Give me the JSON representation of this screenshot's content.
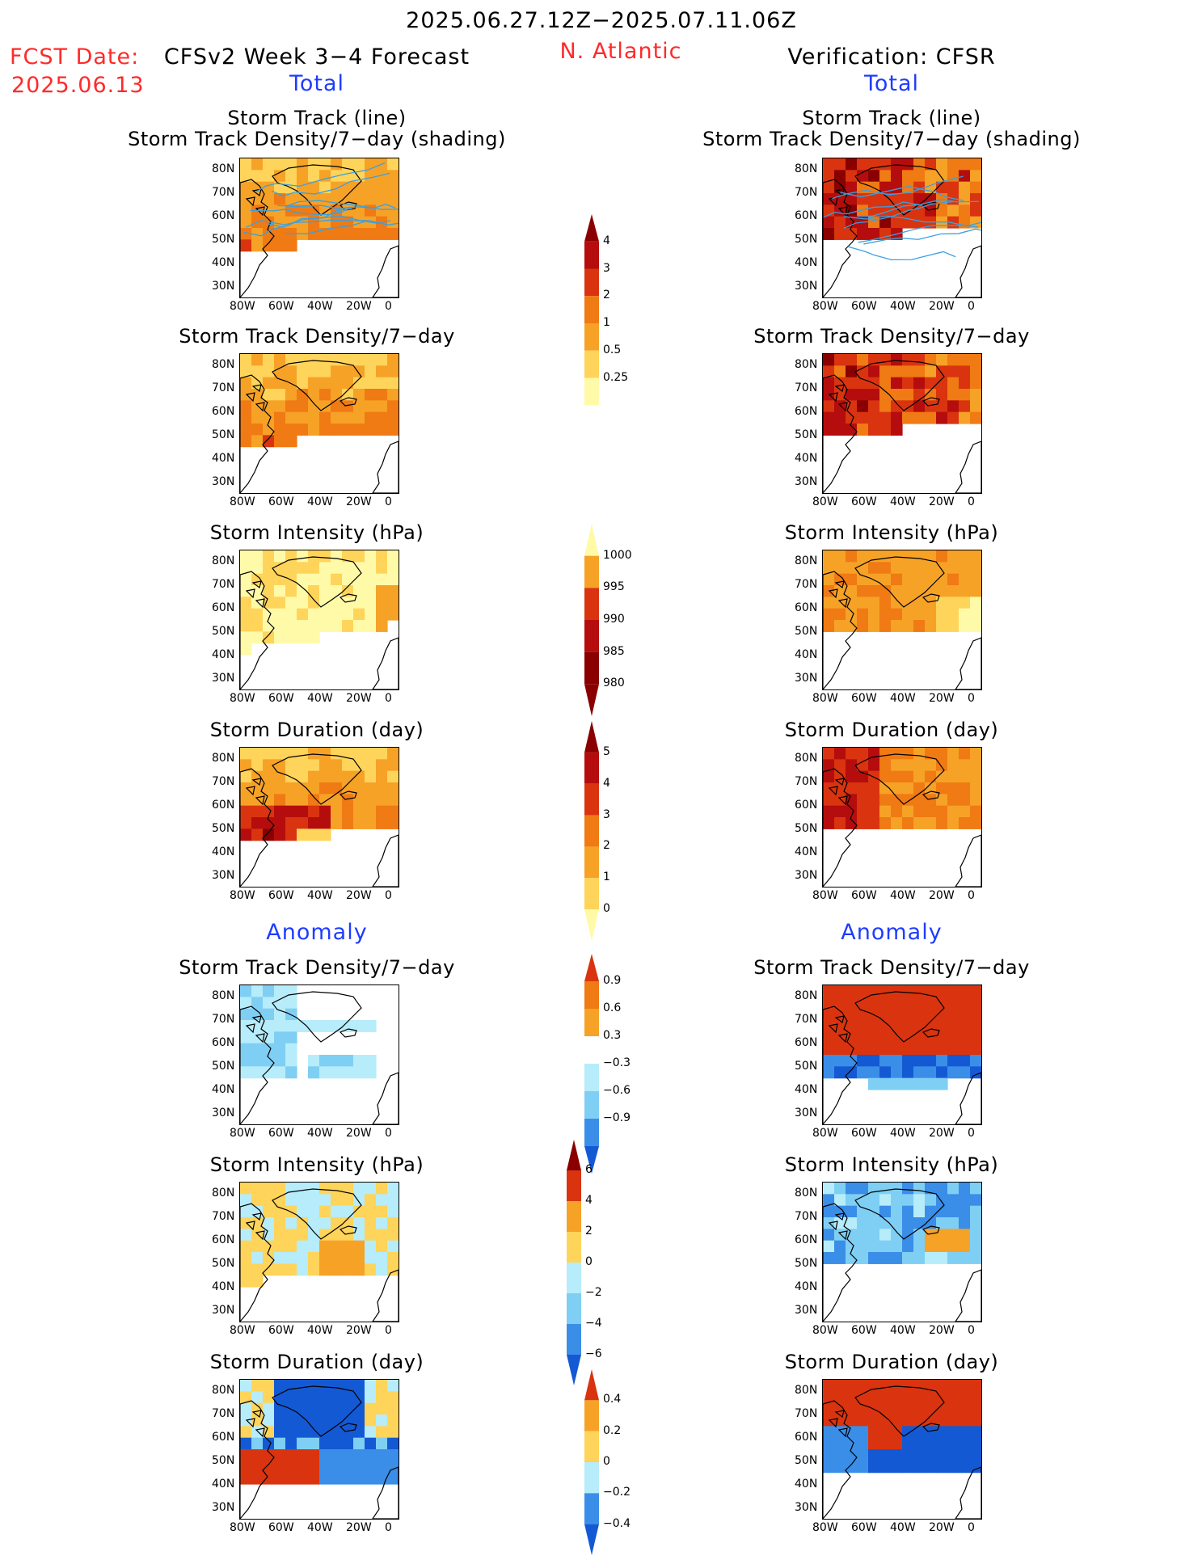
{
  "header": {
    "period": "2025.06.27.12Z−2025.07.11.06Z",
    "fcst_label": "FCST Date:",
    "fcst_date": "2025.06.13",
    "model": "CFSv2 Week 3−4 Forecast",
    "region": "N. Atlantic",
    "verification": "Verification: CFSR",
    "total_left": "Total",
    "total_right": "Total",
    "anomaly_left": "Anomaly",
    "anomaly_right": "Anomaly"
  },
  "panel_titles": {
    "track_line": "Storm Track (line)",
    "track_shading": "Storm Track Density/7−day (shading)",
    "density": "Storm Track Density/7−day",
    "intensity": "Storm Intensity (hPa)",
    "duration": "Storm Duration (day)"
  },
  "axes": {
    "lat": [
      "80N",
      "70N",
      "60N",
      "50N",
      "40N",
      "30N"
    ],
    "lon": [
      "80W",
      "60W",
      "40W",
      "20W",
      "0"
    ]
  },
  "colorbars": {
    "density_total": [
      "4",
      "3",
      "2",
      "1",
      "0.5",
      "0.25"
    ],
    "intensity_total": [
      "1000",
      "995",
      "990",
      "985",
      "980"
    ],
    "duration_total": [
      "5",
      "4",
      "3",
      "2",
      "1",
      "0"
    ],
    "density_anom": [
      "0.9",
      "0.6",
      "0.3",
      "−0.3",
      "−0.6",
      "−0.9"
    ],
    "intensity_anom": [
      "6",
      "4",
      "2",
      "0",
      "−2",
      "−4",
      "−6"
    ],
    "duration_anom": [
      "0.4",
      "0.2",
      "0",
      "−0.2",
      "−0.4"
    ]
  },
  "colors": {
    "warm": [
      "#fffaa8",
      "#ffd45a",
      "#f6a227",
      "#f07a13",
      "#d9340f",
      "#b50d0d",
      "#8a0000"
    ],
    "cool": [
      "#b7ecfa",
      "#7fcff4",
      "#3a8ee8",
      "#1459d4"
    ],
    "track_line": "#3aa0e0"
  }
}
